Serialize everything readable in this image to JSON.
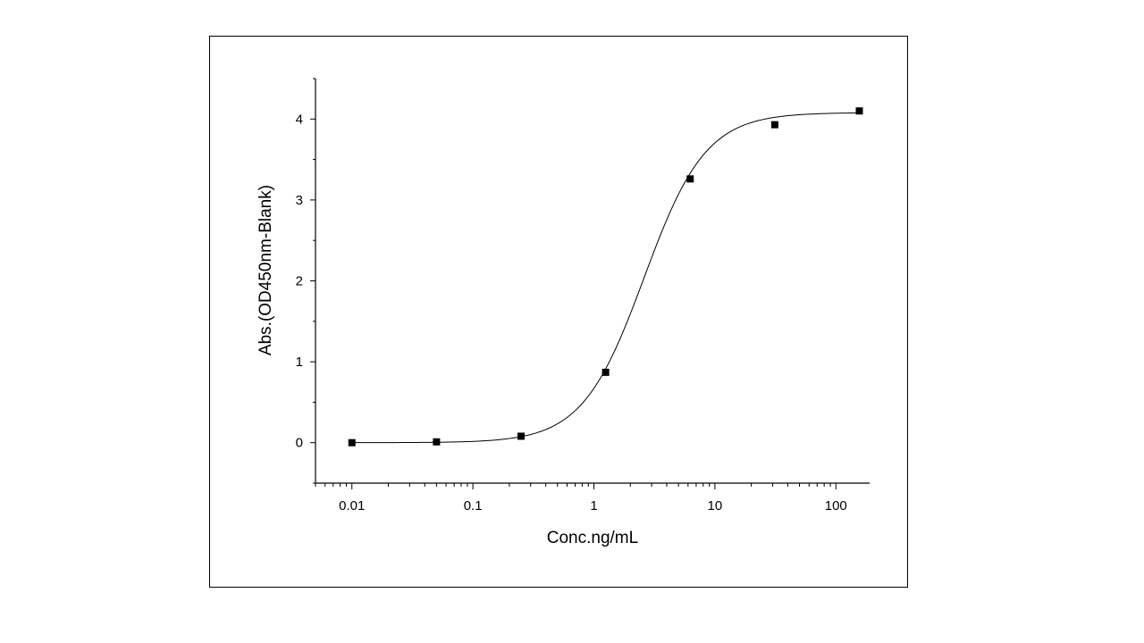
{
  "chart_data": {
    "type": "scatter",
    "title": "",
    "xlabel": "Conc.ng/mL",
    "ylabel": "Abs.(OD450nm-Blank)",
    "x_scale": "log",
    "xlim": [
      0.005,
      190
    ],
    "ylim": [
      -0.5,
      4.5
    ],
    "x_ticks": [
      {
        "value": 0.01,
        "label": "0.01"
      },
      {
        "value": 0.1,
        "label": "0.1"
      },
      {
        "value": 1,
        "label": "1"
      },
      {
        "value": 10,
        "label": "10"
      },
      {
        "value": 100,
        "label": "100"
      }
    ],
    "y_ticks": [
      {
        "value": 0,
        "label": "0"
      },
      {
        "value": 1,
        "label": "1"
      },
      {
        "value": 2,
        "label": "2"
      },
      {
        "value": 3,
        "label": "3"
      },
      {
        "value": 4,
        "label": "4"
      }
    ],
    "grid": false,
    "legend": "none",
    "points": [
      {
        "x": 0.01,
        "y": 0.0
      },
      {
        "x": 0.05,
        "y": 0.01
      },
      {
        "x": 0.25,
        "y": 0.08
      },
      {
        "x": 1.25,
        "y": 0.87
      },
      {
        "x": 6.25,
        "y": 3.26
      },
      {
        "x": 31.25,
        "y": 3.93
      },
      {
        "x": 156.25,
        "y": 4.1
      }
    ],
    "fit_curve": {
      "type": "4PL",
      "bottom": 0.0,
      "top": 4.08,
      "ec50": 2.6,
      "hill": 1.7
    },
    "colors": {
      "marker": "#000000",
      "line": "#000000",
      "axis": "#000000"
    }
  }
}
